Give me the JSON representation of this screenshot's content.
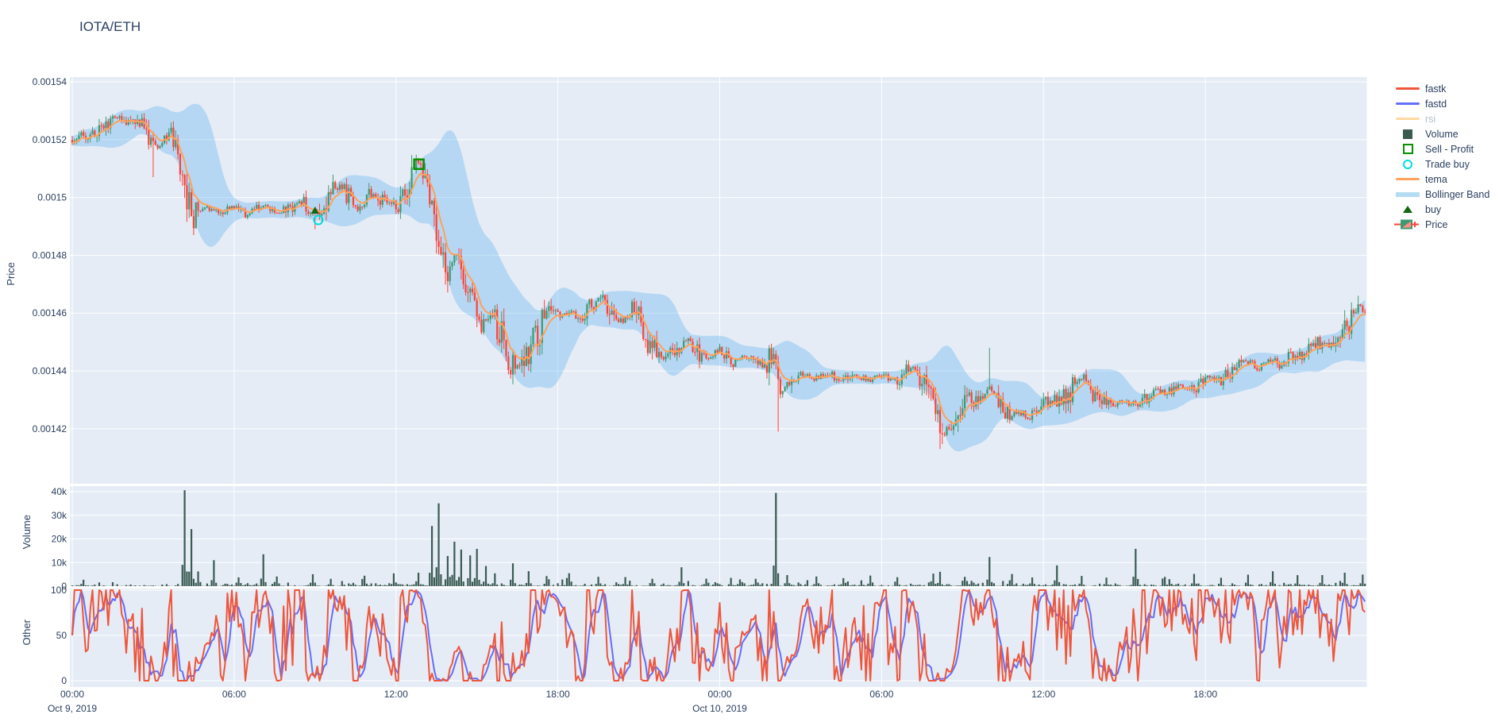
{
  "header": {
    "title": "IOTA/ETH"
  },
  "chart_data": {
    "type": "candlestick+volume+oscillator",
    "pair": "IOTA/ETH",
    "x_start": "Oct 9, 2019 00:00",
    "hours": 48,
    "x_ticks": [
      {
        "t": 0,
        "label": "00:00",
        "date": "Oct 9, 2019"
      },
      {
        "t": 6,
        "label": "06:00"
      },
      {
        "t": 12,
        "label": "12:00"
      },
      {
        "t": 18,
        "label": "18:00"
      },
      {
        "t": 24,
        "label": "00:00",
        "date": "Oct 10, 2019"
      },
      {
        "t": 30,
        "label": "06:00"
      },
      {
        "t": 36,
        "label": "12:00"
      },
      {
        "t": 42,
        "label": "18:00"
      }
    ],
    "price_axis": {
      "label": "Price",
      "ticks": [
        {
          "v": 154,
          "label": "0.00154"
        },
        {
          "v": 152,
          "label": "0.00152"
        },
        {
          "v": 150,
          "label": "0.0015"
        },
        {
          "v": 148,
          "label": "0.00148"
        },
        {
          "v": 146,
          "label": "0.00146"
        },
        {
          "v": 144,
          "label": "0.00144"
        },
        {
          "v": 142,
          "label": "0.00142"
        }
      ],
      "units": "price x 1e-5"
    },
    "volume_axis": {
      "label": "Volume",
      "ticks": [
        {
          "v": 40000,
          "label": "40k"
        },
        {
          "v": 30000,
          "label": "30k"
        },
        {
          "v": 20000,
          "label": "20k"
        },
        {
          "v": 10000,
          "label": "10k"
        },
        {
          "v": 0,
          "label": "0"
        }
      ]
    },
    "other_axis": {
      "label": "Other",
      "ticks": [
        {
          "v": 100,
          "label": "100"
        },
        {
          "v": 50,
          "label": "50"
        },
        {
          "v": 0,
          "label": "0"
        }
      ],
      "series": [
        "fastk",
        "fastd"
      ]
    },
    "price_trend_e5": [
      [
        0,
        152.0
      ],
      [
        0.4,
        152.2
      ],
      [
        0.9,
        152.3
      ],
      [
        1.3,
        152.6
      ],
      [
        1.7,
        152.8
      ],
      [
        2.1,
        152.5
      ],
      [
        2.5,
        152.6
      ],
      [
        2.9,
        152.1
      ],
      [
        3.2,
        151.8
      ],
      [
        3.5,
        152.2
      ],
      [
        3.8,
        152.0
      ],
      [
        4.1,
        150.9
      ],
      [
        4.35,
        149.6
      ],
      [
        4.6,
        149.4
      ],
      [
        5.0,
        149.6
      ],
      [
        5.5,
        149.5
      ],
      [
        6.0,
        149.7
      ],
      [
        6.5,
        149.4
      ],
      [
        7.0,
        149.7
      ],
      [
        7.5,
        149.5
      ],
      [
        8.0,
        149.6
      ],
      [
        8.5,
        149.9
      ],
      [
        8.8,
        149.6
      ],
      [
        9.05,
        149.3
      ],
      [
        9.4,
        149.9
      ],
      [
        9.8,
        150.4
      ],
      [
        10.2,
        150.1
      ],
      [
        10.6,
        149.6
      ],
      [
        11.0,
        150.2
      ],
      [
        11.4,
        150.0
      ],
      [
        11.8,
        149.7
      ],
      [
        12.2,
        150.0
      ],
      [
        12.5,
        150.5
      ],
      [
        12.85,
        151.2
      ],
      [
        13.1,
        151.0
      ],
      [
        13.35,
        149.8
      ],
      [
        13.6,
        147.9
      ],
      [
        13.9,
        147.2
      ],
      [
        14.2,
        147.9
      ],
      [
        14.5,
        147.4
      ],
      [
        14.8,
        146.3
      ],
      [
        15.1,
        145.6
      ],
      [
        15.5,
        145.9
      ],
      [
        15.8,
        145.6
      ],
      [
        16.1,
        144.7
      ],
      [
        16.4,
        144.2
      ],
      [
        16.8,
        144.6
      ],
      [
        17.2,
        145.3
      ],
      [
        17.6,
        145.9
      ],
      [
        18.0,
        145.9
      ],
      [
        18.4,
        146.1
      ],
      [
        18.8,
        145.8
      ],
      [
        19.2,
        146.3
      ],
      [
        19.6,
        146.5
      ],
      [
        20.0,
        146.0
      ],
      [
        20.4,
        145.7
      ],
      [
        20.8,
        146.2
      ],
      [
        21.2,
        145.2
      ],
      [
        21.6,
        144.6
      ],
      [
        22.0,
        144.4
      ],
      [
        22.4,
        144.8
      ],
      [
        22.8,
        145.1
      ],
      [
        23.2,
        144.7
      ],
      [
        23.6,
        144.5
      ],
      [
        24.0,
        144.7
      ],
      [
        24.5,
        144.3
      ],
      [
        25.0,
        144.5
      ],
      [
        25.5,
        144.2
      ],
      [
        26.0,
        144.3
      ],
      [
        26.25,
        143.1
      ],
      [
        26.6,
        143.7
      ],
      [
        27.0,
        143.9
      ],
      [
        27.5,
        143.7
      ],
      [
        28.0,
        143.9
      ],
      [
        28.5,
        143.6
      ],
      [
        29.0,
        143.9
      ],
      [
        29.5,
        143.7
      ],
      [
        30.0,
        143.9
      ],
      [
        30.4,
        143.6
      ],
      [
        30.8,
        143.9
      ],
      [
        31.2,
        144.2
      ],
      [
        31.6,
        143.9
      ],
      [
        31.9,
        142.8
      ],
      [
        32.2,
        141.9
      ],
      [
        32.5,
        142.0
      ],
      [
        32.9,
        142.5
      ],
      [
        33.3,
        143.0
      ],
      [
        33.7,
        142.9
      ],
      [
        34.0,
        143.4
      ],
      [
        34.3,
        142.9
      ],
      [
        34.7,
        142.5
      ],
      [
        35.1,
        142.6
      ],
      [
        35.5,
        142.4
      ],
      [
        35.9,
        142.8
      ],
      [
        36.3,
        142.9
      ],
      [
        36.7,
        143.0
      ],
      [
        37.1,
        143.5
      ],
      [
        37.4,
        143.8
      ],
      [
        37.8,
        143.4
      ],
      [
        38.2,
        143.1
      ],
      [
        38.6,
        142.9
      ],
      [
        39.0,
        143.0
      ],
      [
        39.3,
        142.8
      ],
      [
        39.7,
        143.1
      ],
      [
        40.1,
        143.3
      ],
      [
        40.5,
        143.2
      ],
      [
        41.0,
        143.5
      ],
      [
        41.5,
        143.3
      ],
      [
        42.0,
        143.8
      ],
      [
        42.4,
        143.6
      ],
      [
        42.8,
        143.9
      ],
      [
        43.2,
        144.1
      ],
      [
        43.6,
        144.3
      ],
      [
        44.0,
        144.1
      ],
      [
        44.4,
        144.4
      ],
      [
        44.8,
        144.2
      ],
      [
        45.2,
        144.6
      ],
      [
        45.6,
        144.5
      ],
      [
        46.0,
        144.8
      ],
      [
        46.4,
        145.0
      ],
      [
        46.8,
        145.2
      ],
      [
        47.1,
        145.5
      ],
      [
        47.4,
        145.8
      ],
      [
        47.7,
        146.2
      ],
      [
        48,
        145.8
      ]
    ],
    "wick_events": [
      {
        "t": 3.0,
        "low": 150.7
      },
      {
        "t": 4.5,
        "low": 148.7
      },
      {
        "t": 9.0,
        "low": 148.9
      },
      {
        "t": 13.9,
        "low": 146.8
      },
      {
        "t": 16.35,
        "low": 143.8
      },
      {
        "t": 26.2,
        "low": 141.9
      },
      {
        "t": 32.2,
        "low": 141.3
      },
      {
        "t": 34.0,
        "high": 144.8
      },
      {
        "t": 47.7,
        "high": 146.6
      }
    ],
    "volume_spikes": [
      [
        4.17,
        40300
      ],
      [
        4.42,
        23800
      ],
      [
        4.7,
        6000
      ],
      [
        5.25,
        10800
      ],
      [
        6.2,
        3500
      ],
      [
        7.1,
        13300
      ],
      [
        7.6,
        3000
      ],
      [
        8.9,
        4200
      ],
      [
        9.6,
        3000
      ],
      [
        10.8,
        3500
      ],
      [
        11.9,
        3200
      ],
      [
        12.85,
        5500
      ],
      [
        13.35,
        25300
      ],
      [
        13.6,
        35000
      ],
      [
        13.9,
        12000
      ],
      [
        14.15,
        17800
      ],
      [
        14.45,
        15000
      ],
      [
        14.75,
        12800
      ],
      [
        15.0,
        15300
      ],
      [
        15.3,
        8000
      ],
      [
        15.7,
        5000
      ],
      [
        16.3,
        9300
      ],
      [
        16.9,
        5800
      ],
      [
        17.6,
        4000
      ],
      [
        18.4,
        5200
      ],
      [
        19.5,
        3500
      ],
      [
        20.5,
        3800
      ],
      [
        21.5,
        3000
      ],
      [
        22.6,
        7800
      ],
      [
        23.5,
        3000
      ],
      [
        24.4,
        3400
      ],
      [
        25.3,
        3000
      ],
      [
        26.1,
        38800
      ],
      [
        26.5,
        4500
      ],
      [
        27.6,
        3800
      ],
      [
        28.6,
        3200
      ],
      [
        29.6,
        4200
      ],
      [
        30.6,
        3400
      ],
      [
        31.9,
        5200
      ],
      [
        32.2,
        5800
      ],
      [
        33.1,
        3400
      ],
      [
        34.0,
        12300
      ],
      [
        34.8,
        4200
      ],
      [
        35.6,
        3600
      ],
      [
        36.5,
        8300
      ],
      [
        37.4,
        4200
      ],
      [
        38.3,
        3400
      ],
      [
        39.4,
        15200
      ],
      [
        40.5,
        3600
      ],
      [
        41.6,
        3800
      ],
      [
        42.6,
        3200
      ],
      [
        43.6,
        4800
      ],
      [
        44.5,
        5200
      ],
      [
        45.4,
        3600
      ],
      [
        46.3,
        4400
      ],
      [
        47.2,
        5600
      ],
      [
        47.8,
        4800
      ]
    ],
    "trades": {
      "buy_signal": {
        "t": 9.0,
        "price_e5": 149.55
      },
      "trade_buy": {
        "t": 9.12,
        "price_e5": 149.22
      },
      "sell_profit": {
        "t": 12.85,
        "price_e5": 151.15
      }
    },
    "legend": [
      {
        "label": "fastk",
        "type": "line",
        "color": "#EF553B"
      },
      {
        "label": "fastd",
        "type": "line",
        "color": "#636EFA"
      },
      {
        "label": "rsi",
        "type": "line",
        "color": "#ffd9a0",
        "muted": true
      },
      {
        "label": "Volume",
        "type": "square",
        "color": "#3a5a52"
      },
      {
        "label": "Sell - Profit",
        "type": "open-square",
        "color": "#089000"
      },
      {
        "label": "Trade buy",
        "type": "open-circle",
        "color": "#00dede"
      },
      {
        "label": "tema",
        "type": "line",
        "color": "#FFA15A"
      },
      {
        "label": "Bollinger Band",
        "type": "band",
        "color": "#b5dcf2"
      },
      {
        "label": "buy",
        "type": "triangle",
        "color": "#146414"
      },
      {
        "label": "Price",
        "type": "candle",
        "color": "#3D9970",
        "color2": "#FF4136"
      }
    ],
    "colors": {
      "paper": "#ffffff",
      "plot_bg": "#E5ECF6",
      "grid": "#ffffff",
      "text": "#2a3f5f",
      "muted_text": "#b5bfca",
      "candle_up": "#3D9970",
      "candle_down": "#FF4136",
      "tema": "#FFA15A",
      "bollinger_fill": "rgba(70,165,235,0.30)",
      "volume_bar": "#3a5a52",
      "fastk": "#EF553B",
      "fastd": "#636EFA",
      "buy_marker": "#146414",
      "sell_marker": "#089000",
      "trade_buy_marker": "#00dede"
    }
  }
}
